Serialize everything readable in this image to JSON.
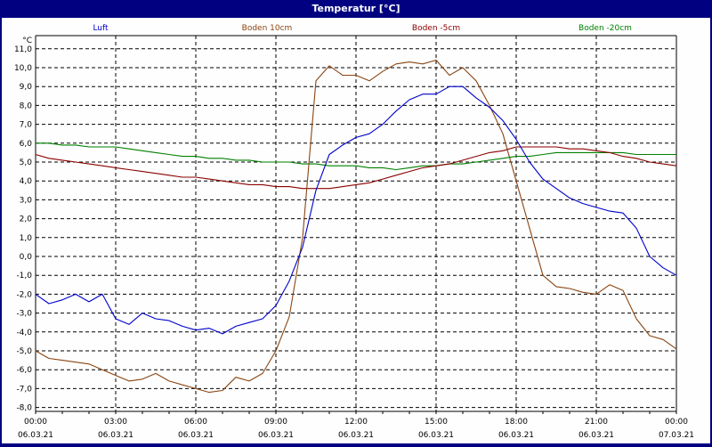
{
  "window": {
    "title": "Temperatur [°C]"
  },
  "legend": [
    {
      "label": "Luft",
      "color": "#0000cc"
    },
    {
      "label": "Boden 10cm",
      "color": "#8b4513"
    },
    {
      "label": "Boden -5cm",
      "color": "#8b0000"
    },
    {
      "label": "Boden -20cm",
      "color": "#008000"
    }
  ],
  "chart_data": {
    "type": "line",
    "title": "Temperatur [°C]",
    "xlabel": "",
    "ylabel": "°C",
    "ylim": [
      -8,
      11
    ],
    "grid": true,
    "legend_position": "top",
    "y_ticks": [
      "11,0",
      "10,0",
      "9,0",
      "8,0",
      "7,0",
      "6,0",
      "5,0",
      "4,0",
      "3,0",
      "2,0",
      "1,0",
      "0,0",
      "-1,0",
      "-2,0",
      "-3,0",
      "-4,0",
      "-5,0",
      "-6,0",
      "-7,0",
      "-8,0"
    ],
    "x_ticks": [
      {
        "time": "00:00",
        "date": "06.03.21"
      },
      {
        "time": "03:00",
        "date": "06.03.21"
      },
      {
        "time": "06:00",
        "date": "06.03.21"
      },
      {
        "time": "09:00",
        "date": "06.03.21"
      },
      {
        "time": "12:00",
        "date": "06.03.21"
      },
      {
        "time": "15:00",
        "date": "06.03.21"
      },
      {
        "time": "18:00",
        "date": "06.03.21"
      },
      {
        "time": "21:00",
        "date": "06.03.21"
      },
      {
        "time": "00:00",
        "date": "07.03.21"
      }
    ],
    "x_hours": [
      0,
      0.5,
      1,
      1.5,
      2,
      2.5,
      3,
      3.5,
      4,
      4.5,
      5,
      5.5,
      6,
      6.5,
      7,
      7.5,
      8,
      8.5,
      9,
      9.5,
      10,
      10.5,
      11,
      11.5,
      12,
      12.5,
      13,
      13.5,
      14,
      14.5,
      15,
      15.5,
      16,
      16.5,
      17,
      17.5,
      18,
      18.5,
      19,
      19.5,
      20,
      20.5,
      21,
      21.5,
      22,
      22.5,
      23,
      23.5,
      24
    ],
    "series": [
      {
        "name": "Luft",
        "color": "#0000cc",
        "values": [
          -2.0,
          -2.5,
          -2.3,
          -2.0,
          -2.4,
          -2.0,
          -3.3,
          -3.6,
          -3.0,
          -3.3,
          -3.4,
          -3.7,
          -3.9,
          -3.8,
          -4.1,
          -3.7,
          -3.5,
          -3.3,
          -2.6,
          -1.3,
          0.5,
          3.5,
          5.4,
          5.9,
          6.3,
          6.5,
          7.0,
          7.7,
          8.3,
          8.6,
          8.6,
          9.0,
          9.0,
          8.4,
          7.9,
          7.2,
          6.2,
          5.0,
          4.1,
          3.6,
          3.1,
          2.8,
          2.6,
          2.4,
          2.3,
          1.5,
          0.0,
          -0.6,
          -1.0
        ]
      },
      {
        "name": "Boden 10cm",
        "color": "#8b4513",
        "values": [
          -5.0,
          -5.4,
          -5.5,
          -5.6,
          -5.7,
          -6.0,
          -6.3,
          -6.6,
          -6.5,
          -6.2,
          -6.6,
          -6.8,
          -7.0,
          -7.2,
          -7.1,
          -6.4,
          -6.6,
          -6.2,
          -5.0,
          -3.2,
          1.0,
          9.3,
          10.1,
          9.6,
          9.6,
          9.3,
          9.8,
          10.2,
          10.3,
          10.2,
          10.4,
          9.6,
          10.0,
          9.3,
          8.0,
          6.5,
          4.0,
          1.5,
          -1.0,
          -1.6,
          -1.7,
          -1.9,
          -2.0,
          -1.5,
          -1.8,
          -3.3,
          -4.2,
          -4.4,
          -4.9
        ]
      },
      {
        "name": "Boden -5cm",
        "color": "#8b0000",
        "values": [
          5.4,
          5.2,
          5.1,
          5.0,
          4.9,
          4.8,
          4.7,
          4.6,
          4.5,
          4.4,
          4.3,
          4.2,
          4.2,
          4.1,
          4.0,
          3.9,
          3.8,
          3.8,
          3.7,
          3.7,
          3.6,
          3.6,
          3.6,
          3.7,
          3.8,
          3.9,
          4.1,
          4.3,
          4.5,
          4.7,
          4.8,
          4.9,
          5.1,
          5.3,
          5.5,
          5.6,
          5.8,
          5.8,
          5.8,
          5.8,
          5.7,
          5.7,
          5.6,
          5.5,
          5.3,
          5.2,
          5.0,
          4.9,
          4.8
        ]
      },
      {
        "name": "Boden -20cm",
        "color": "#008000",
        "values": [
          6.0,
          6.0,
          5.9,
          5.9,
          5.8,
          5.8,
          5.8,
          5.7,
          5.6,
          5.5,
          5.4,
          5.3,
          5.3,
          5.2,
          5.2,
          5.1,
          5.1,
          5.0,
          5.0,
          5.0,
          4.9,
          4.9,
          4.8,
          4.8,
          4.8,
          4.7,
          4.7,
          4.6,
          4.7,
          4.8,
          4.8,
          4.9,
          4.9,
          5.0,
          5.1,
          5.2,
          5.3,
          5.3,
          5.4,
          5.5,
          5.5,
          5.5,
          5.5,
          5.5,
          5.5,
          5.4,
          5.4,
          5.4,
          5.4
        ]
      }
    ]
  }
}
